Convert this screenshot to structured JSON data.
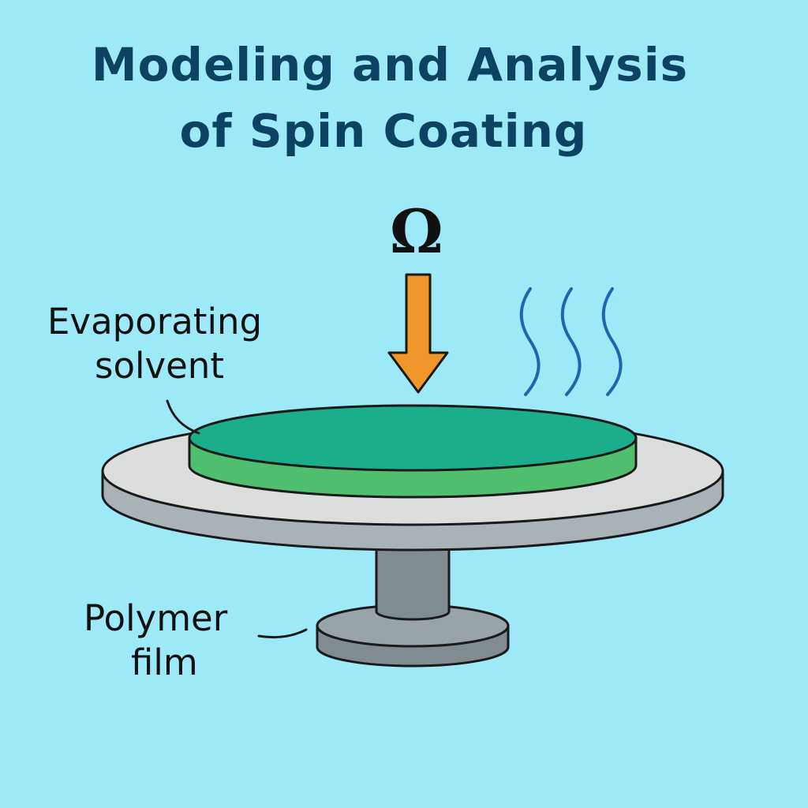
{
  "title": {
    "line1": "Modeling and Analysis",
    "line2": "of Spin Coating"
  },
  "symbols": {
    "angular_velocity": "Ω"
  },
  "labels": {
    "solvent_line1": "Evaporating",
    "solvent_line2": "solvent",
    "polymer_line1": "Polymer",
    "polymer_line2": "film"
  },
  "colors": {
    "background": "#9de9f8",
    "title": "#0c4264",
    "film_top": "#1bae8a",
    "film_side": "#4fbf6e",
    "disk_top": "#dcdedd",
    "disk_side": "#a8b2b7",
    "spindle": "#7f8c92",
    "base_top": "#98a4aa",
    "base_side": "#808c92",
    "arrow": "#f0962a",
    "vapor": "#1f66b0"
  }
}
